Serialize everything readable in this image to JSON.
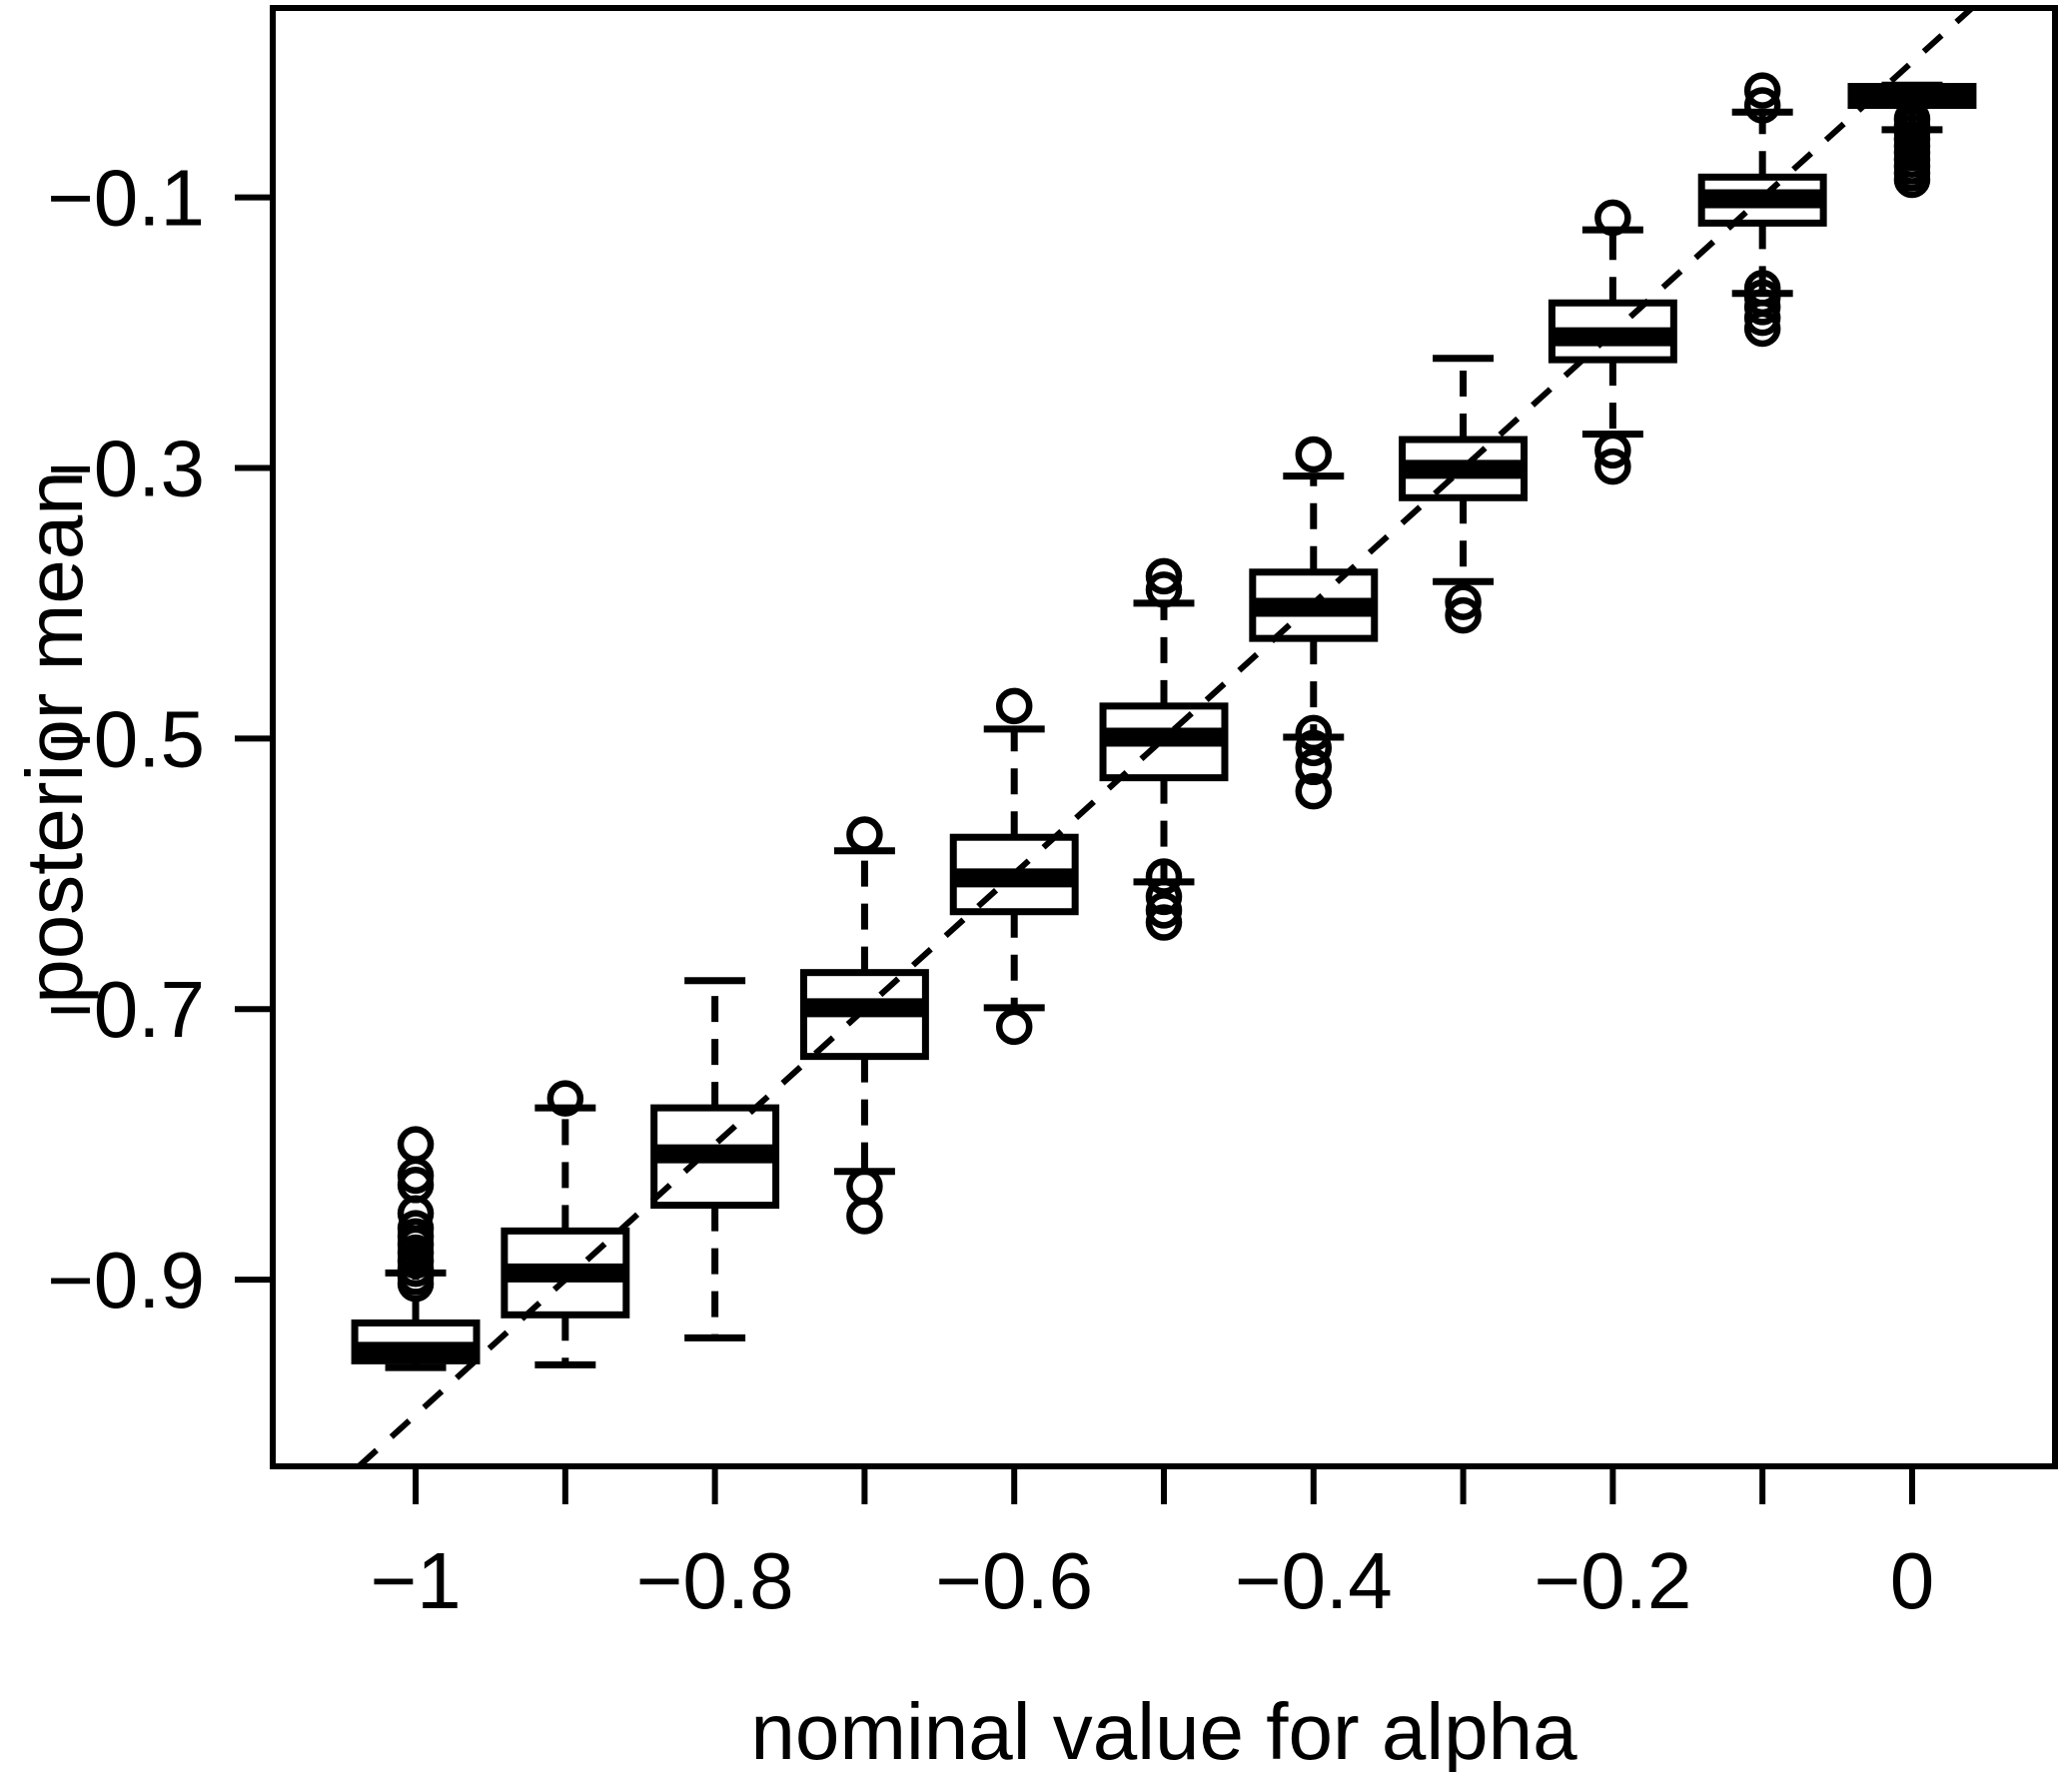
{
  "chart_data": {
    "type": "boxplot",
    "title": "",
    "xlabel": "nominal value for alpha",
    "ylabel": "posterior mean",
    "xlim": [
      -1.0955,
      0.0955
    ],
    "ylim": [
      -1.038,
      0.04
    ],
    "grid": false,
    "legend": "none",
    "colors": {
      "foreground": "#000000",
      "background": "#ffffff"
    },
    "identity_line": {
      "show": true,
      "style": "dashed",
      "slope": 1,
      "intercept": 0
    },
    "x_ticks": [
      {
        "value": -1.0,
        "label": "−1"
      },
      {
        "value": -0.9,
        "label": ""
      },
      {
        "value": -0.8,
        "label": "−0.8"
      },
      {
        "value": -0.7,
        "label": ""
      },
      {
        "value": -0.6,
        "label": "−0.6"
      },
      {
        "value": -0.5,
        "label": ""
      },
      {
        "value": -0.4,
        "label": "−0.4"
      },
      {
        "value": -0.3,
        "label": ""
      },
      {
        "value": -0.2,
        "label": "−0.2"
      },
      {
        "value": -0.1,
        "label": ""
      },
      {
        "value": 0.0,
        "label": "0"
      }
    ],
    "y_ticks": [
      {
        "value": -0.9,
        "label": "−0.9"
      },
      {
        "value": -0.7,
        "label": "−0.7"
      },
      {
        "value": -0.5,
        "label": "−0.5"
      },
      {
        "value": -0.3,
        "label": "−0.3"
      },
      {
        "value": -0.1,
        "label": "−0.1"
      }
    ],
    "box_width": 0.0814,
    "boxes": [
      {
        "pos": -1.0,
        "q1": -0.96,
        "median": -0.953,
        "q3": -0.932,
        "whisker_low": -0.965,
        "whisker_high": -0.895,
        "outliers": [
          -0.8,
          -0.823,
          -0.83,
          -0.851,
          -0.862,
          -0.868,
          -0.874,
          -0.88,
          -0.886,
          -0.892,
          -0.898,
          -0.903
        ]
      },
      {
        "pos": -0.9,
        "q1": -0.926,
        "median": -0.895,
        "q3": -0.864,
        "whisker_low": -0.963,
        "whisker_high": -0.773,
        "outliers": [
          -0.766
        ]
      },
      {
        "pos": -0.8,
        "q1": -0.845,
        "median": -0.807,
        "q3": -0.773,
        "whisker_low": -0.943,
        "whisker_high": -0.679,
        "outliers": []
      },
      {
        "pos": -0.7,
        "q1": -0.735,
        "median": -0.699,
        "q3": -0.673,
        "whisker_low": -0.82,
        "whisker_high": -0.583,
        "outliers": [
          -0.571,
          -0.831,
          -0.853
        ]
      },
      {
        "pos": -0.6,
        "q1": -0.628,
        "median": -0.603,
        "q3": -0.573,
        "whisker_low": -0.699,
        "whisker_high": -0.493,
        "outliers": [
          -0.476,
          -0.713
        ]
      },
      {
        "pos": -0.5,
        "q1": -0.529,
        "median": -0.499,
        "q3": -0.476,
        "whisker_low": -0.606,
        "whisker_high": -0.4,
        "outliers": [
          -0.38,
          -0.39,
          -0.602,
          -0.617,
          -0.627,
          -0.636
        ]
      },
      {
        "pos": -0.4,
        "q1": -0.426,
        "median": -0.403,
        "q3": -0.377,
        "whisker_low": -0.499,
        "whisker_high": -0.306,
        "outliers": [
          -0.29,
          -0.496,
          -0.507,
          -0.521,
          -0.539
        ]
      },
      {
        "pos": -0.3,
        "q1": -0.322,
        "median": -0.301,
        "q3": -0.279,
        "whisker_low": -0.384,
        "whisker_high": -0.219,
        "outliers": [
          -0.399,
          -0.409
        ]
      },
      {
        "pos": -0.2,
        "q1": -0.22,
        "median": -0.203,
        "q3": -0.178,
        "whisker_low": -0.275,
        "whisker_high": -0.124,
        "outliers": [
          -0.115,
          -0.287,
          -0.299
        ]
      },
      {
        "pos": -0.1,
        "q1": -0.119,
        "median": -0.101,
        "q3": -0.085,
        "whisker_low": -0.171,
        "whisker_high": -0.037,
        "outliers": [
          -0.021,
          -0.032,
          -0.167,
          -0.174,
          -0.181,
          -0.189,
          -0.197
        ]
      },
      {
        "pos": 0.0,
        "q1": -0.032,
        "median": -0.023,
        "q3": -0.018,
        "whisker_low": -0.05,
        "whisker_high": -0.017,
        "outliers": [
          -0.042,
          -0.047,
          -0.052,
          -0.057,
          -0.062,
          -0.067,
          -0.072,
          -0.077,
          -0.082,
          -0.087
        ]
      }
    ]
  }
}
